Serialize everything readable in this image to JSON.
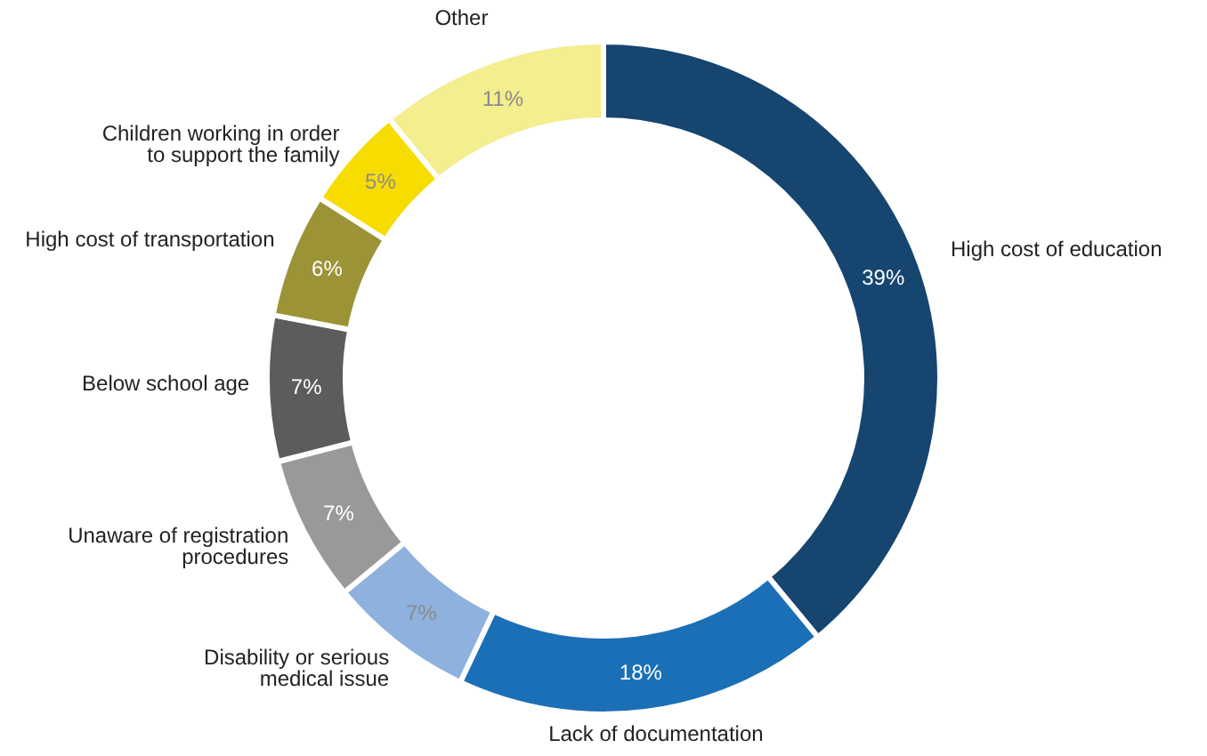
{
  "chart_data": {
    "type": "donut",
    "categories": [
      "High cost of education",
      "Lack of documentation",
      "Disability or serious\nmedical issue",
      "Unaware of registration\nprocedures",
      "Below school age",
      "High cost of transportation",
      "Children working in order\nto support the family",
      "Other"
    ],
    "values": [
      39,
      18,
      7,
      7,
      7,
      6,
      5,
      11
    ],
    "value_labels": [
      "39%",
      "18%",
      "7%",
      "7%",
      "7%",
      "6%",
      "5%",
      "11%"
    ],
    "colors": [
      "#164570",
      "#1b6fb6",
      "#8fb1de",
      "#999999",
      "#5c5c5c",
      "#9c9336",
      "#f7dc00",
      "#f3ee8e"
    ]
  }
}
